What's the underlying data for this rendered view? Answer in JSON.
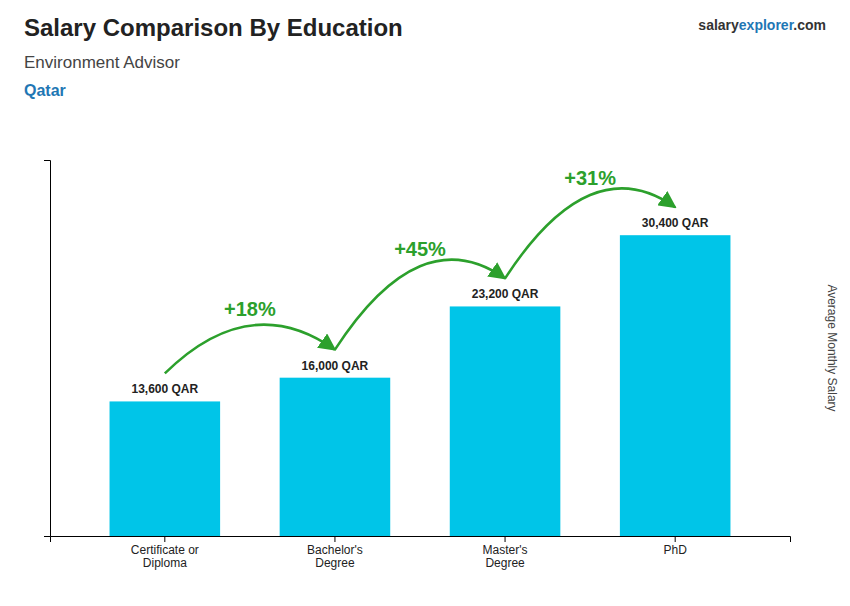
{
  "chart_data": {
    "type": "bar",
    "title": "Salary Comparison By Education",
    "subtitle": "Environment Advisor",
    "ylabel": "Average Monthly Salary",
    "categories": [
      "Certificate or\nDiploma",
      "Bachelor's\nDegree",
      "Master's\nDegree",
      "PhD"
    ],
    "values": [
      13600,
      16000,
      23200,
      30400
    ],
    "value_labels": [
      "13,600 QAR",
      "16,000 QAR",
      "23,200 QAR",
      "30,400 QAR"
    ],
    "data_labels": true,
    "color": "#00C5E8",
    "ylim": [
      0,
      38000
    ],
    "tick_labels": "x",
    "grid": false,
    "annotations": [
      {
        "text": "Qatar"
      },
      {
        "text": "+18%",
        "from": "Certificate or\nDiploma",
        "to": "Bachelor's\nDegree"
      },
      {
        "text": "+45%",
        "from": "Bachelor's\nDegree",
        "to": "Master's\nDegree"
      },
      {
        "text": "+31%",
        "from": "Master's\nDegree",
        "to": "PhD"
      }
    ],
    "brand": [
      {
        "text": "salary"
      },
      {
        "text": "explorer"
      },
      {
        "text": ".com"
      }
    ]
  }
}
